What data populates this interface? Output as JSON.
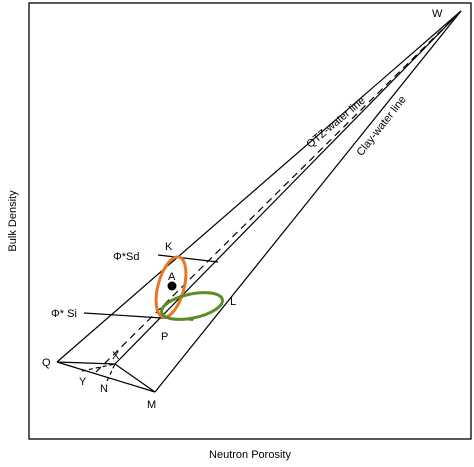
{
  "axes": {
    "x_label": "Neutron Porosity",
    "y_label": "Bulk Density"
  },
  "lines": {
    "qtz_water": "QTZ-water line",
    "clay_water": "Clay-water line"
  },
  "points": {
    "w": "W",
    "k": "K",
    "a": "A",
    "l": "L",
    "p": "P",
    "q": "Q",
    "x": "X",
    "y": "Y",
    "n": "N",
    "m": "M"
  },
  "porosity_labels": {
    "sd": "Φ*Sd",
    "si": "Φ* Si"
  },
  "colors": {
    "orange_ellipse": "#E87722",
    "green_ellipse": "#5B8C2A",
    "lines": "#000000"
  }
}
